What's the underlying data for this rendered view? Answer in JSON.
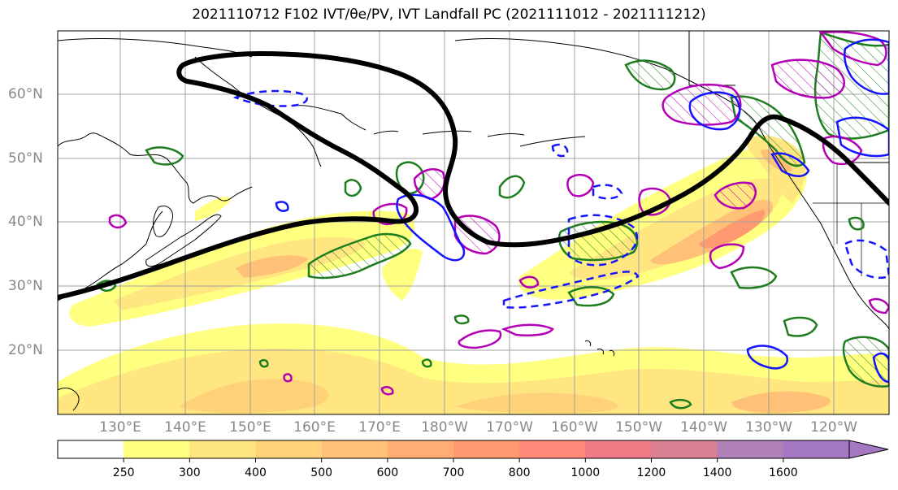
{
  "title": "2021110712 F102 IVT/θe/PV, IVT Landfall PC (2021111012 - 2021111212)",
  "lat_labels": [
    "60°N",
    "50°N",
    "40°N",
    "30°N",
    "20°N"
  ],
  "lon_labels": [
    "130°E",
    "140°E",
    "150°E",
    "160°E",
    "170°E",
    "180°W",
    "170°W",
    "160°W",
    "150°W",
    "140°W",
    "130°W",
    "120°W"
  ],
  "colorbar": {
    "ticks": [
      "250",
      "300",
      "400",
      "500",
      "600",
      "700",
      "800",
      "1000",
      "1200",
      "1400",
      "1600"
    ],
    "colors": [
      "#ffffff",
      "#ffff80",
      "#ffe680",
      "#ffd27a",
      "#ffc078",
      "#ffad72",
      "#ff9a70",
      "#ff8a7a",
      "#f07a86",
      "#d98092",
      "#b080b8",
      "#a478c2"
    ]
  },
  "contour_colors": {
    "ivt_landfall_pc": "#000000",
    "theta_e": "#1414ff",
    "pv": "#b400b4",
    "hatched_green": "#1e7d1e"
  }
}
